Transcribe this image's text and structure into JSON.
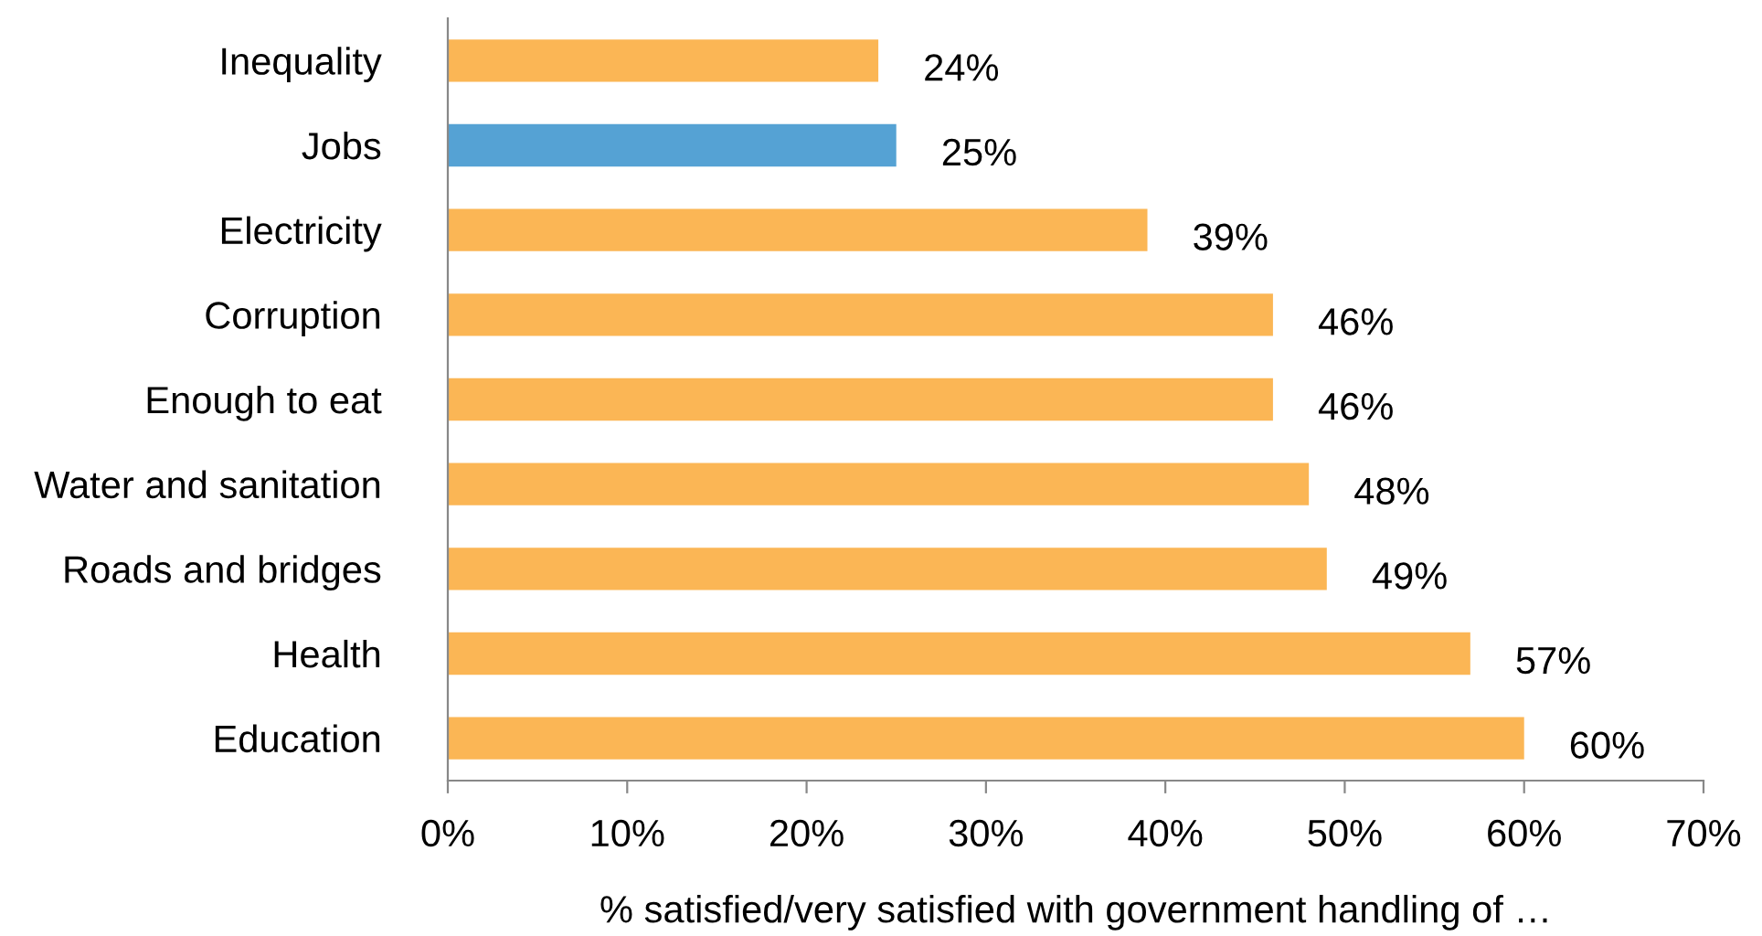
{
  "chart_data": {
    "type": "bar",
    "orientation": "horizontal",
    "xlabel": "% satisfied/very satisfied with government handling of …",
    "categories": [
      "Inequality",
      "Jobs",
      "Electricity",
      "Corruption",
      "Enough to eat",
      "Water and sanitation",
      "Roads and bridges",
      "Health",
      "Education"
    ],
    "values": [
      24,
      25,
      39,
      46,
      46,
      48,
      49,
      57,
      60
    ],
    "colors": [
      "#fbb655",
      "#55a2d4",
      "#fbb655",
      "#fbb655",
      "#fbb655",
      "#fbb655",
      "#fbb655",
      "#fbb655",
      "#fbb655"
    ],
    "value_labels": [
      "24%",
      "25%",
      "39%",
      "46%",
      "46%",
      "48%",
      "49%",
      "57%",
      "60%"
    ],
    "xlim": [
      0,
      70
    ],
    "xticks": [
      {
        "value": 0,
        "label": "0%"
      },
      {
        "value": 10,
        "label": "10%"
      },
      {
        "value": 20,
        "label": "20%"
      },
      {
        "value": 30,
        "label": "30%"
      },
      {
        "value": 40,
        "label": "40%"
      },
      {
        "value": 50,
        "label": "50%"
      },
      {
        "value": 60,
        "label": "60%"
      },
      {
        "value": 70,
        "label": "70%"
      }
    ],
    "grid": false,
    "legend": false
  }
}
